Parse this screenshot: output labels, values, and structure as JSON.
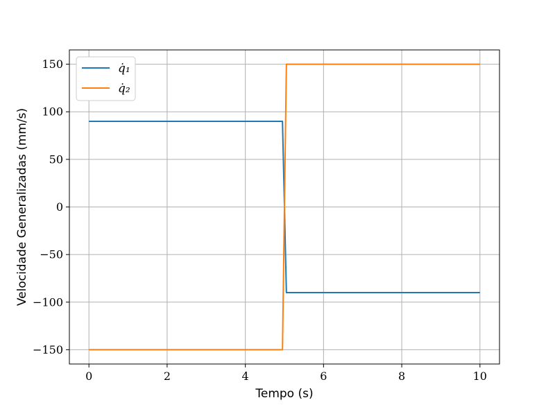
{
  "chart_data": {
    "type": "line",
    "title": "",
    "xlabel": "Tempo (s)",
    "ylabel": "Velocidade Generalizadas (mm/s)",
    "xlim": [
      -0.5,
      10.5
    ],
    "ylim": [
      -165,
      165
    ],
    "xticks": [
      0,
      2,
      4,
      6,
      8,
      10
    ],
    "yticks": [
      150,
      100,
      50,
      0,
      -50,
      -100,
      -150
    ],
    "xtick_labels": [
      "0",
      "2",
      "4",
      "6",
      "8",
      "10"
    ],
    "ytick_labels": [
      "150",
      "100",
      "50",
      "0",
      "−50",
      "−100",
      "−150"
    ],
    "grid": true,
    "legend_position": "top-left",
    "series": [
      {
        "name": "q̇₁",
        "color": "#1f77b4",
        "x": [
          0,
          4.95,
          5.05,
          10
        ],
        "y": [
          90,
          90,
          -90,
          -90
        ]
      },
      {
        "name": "q̇₂",
        "color": "#ff7f0e",
        "x": [
          0,
          4.95,
          5.05,
          10
        ],
        "y": [
          -150,
          -150,
          150,
          150
        ]
      }
    ]
  }
}
